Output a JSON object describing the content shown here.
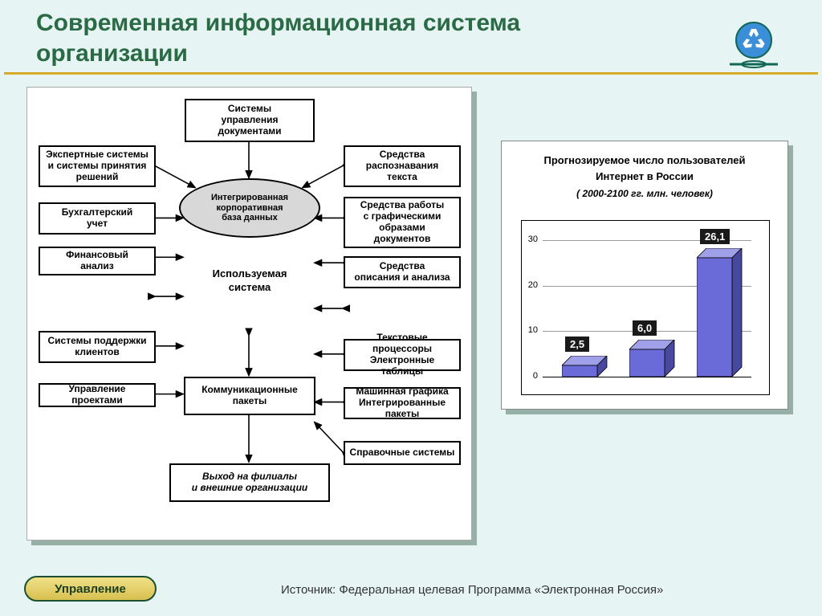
{
  "title": "Современная информационная система организации",
  "footer_button": "Управление",
  "footer_source": "Источник: Федеральная целевая Программа «Электронная Россия»",
  "diagram": {
    "center_top": "Системы\nуправления\nдокументами",
    "ellipse": "Интегрированная\nкорпоративная\nбаза данных",
    "center_sys": "Используемая\nсистема",
    "comm": "Коммуникационные\nпакеты",
    "bottom": "Выход на филиалы\nи внешние организации",
    "left": [
      "Экспертные системы\nи системы принятия\nрешений",
      "Бухгалтерский\nучет",
      "Финансовый\nанализ",
      "Системы поддержки\nклиентов",
      "Управление проектами"
    ],
    "right": [
      "Средства\nраспознавания\nтекста",
      "Средства работы\nс графическими\nобразами\nдокументов",
      "Средства\nописания и анализа",
      "Текстовые процессоры\nЭлектронные таблицы",
      "Машинная графика\nИнтегрированные пакеты",
      "Справочные системы"
    ]
  },
  "chart": {
    "title_l1": "Прогнозируемое число пользователей",
    "title_l2": "Интернет в России",
    "title_l3": "( 2000-2100 гг. млн. человек)",
    "ymax": 30,
    "ystep": 10,
    "bars": [
      {
        "label": "2,5",
        "value": 2.5
      },
      {
        "label": "6,0",
        "value": 6.0
      },
      {
        "label": "26,1",
        "value": 26.1
      }
    ],
    "bar_front": "#6a6ad8",
    "bar_top": "#a0a0e8",
    "bar_side": "#4848a0"
  }
}
